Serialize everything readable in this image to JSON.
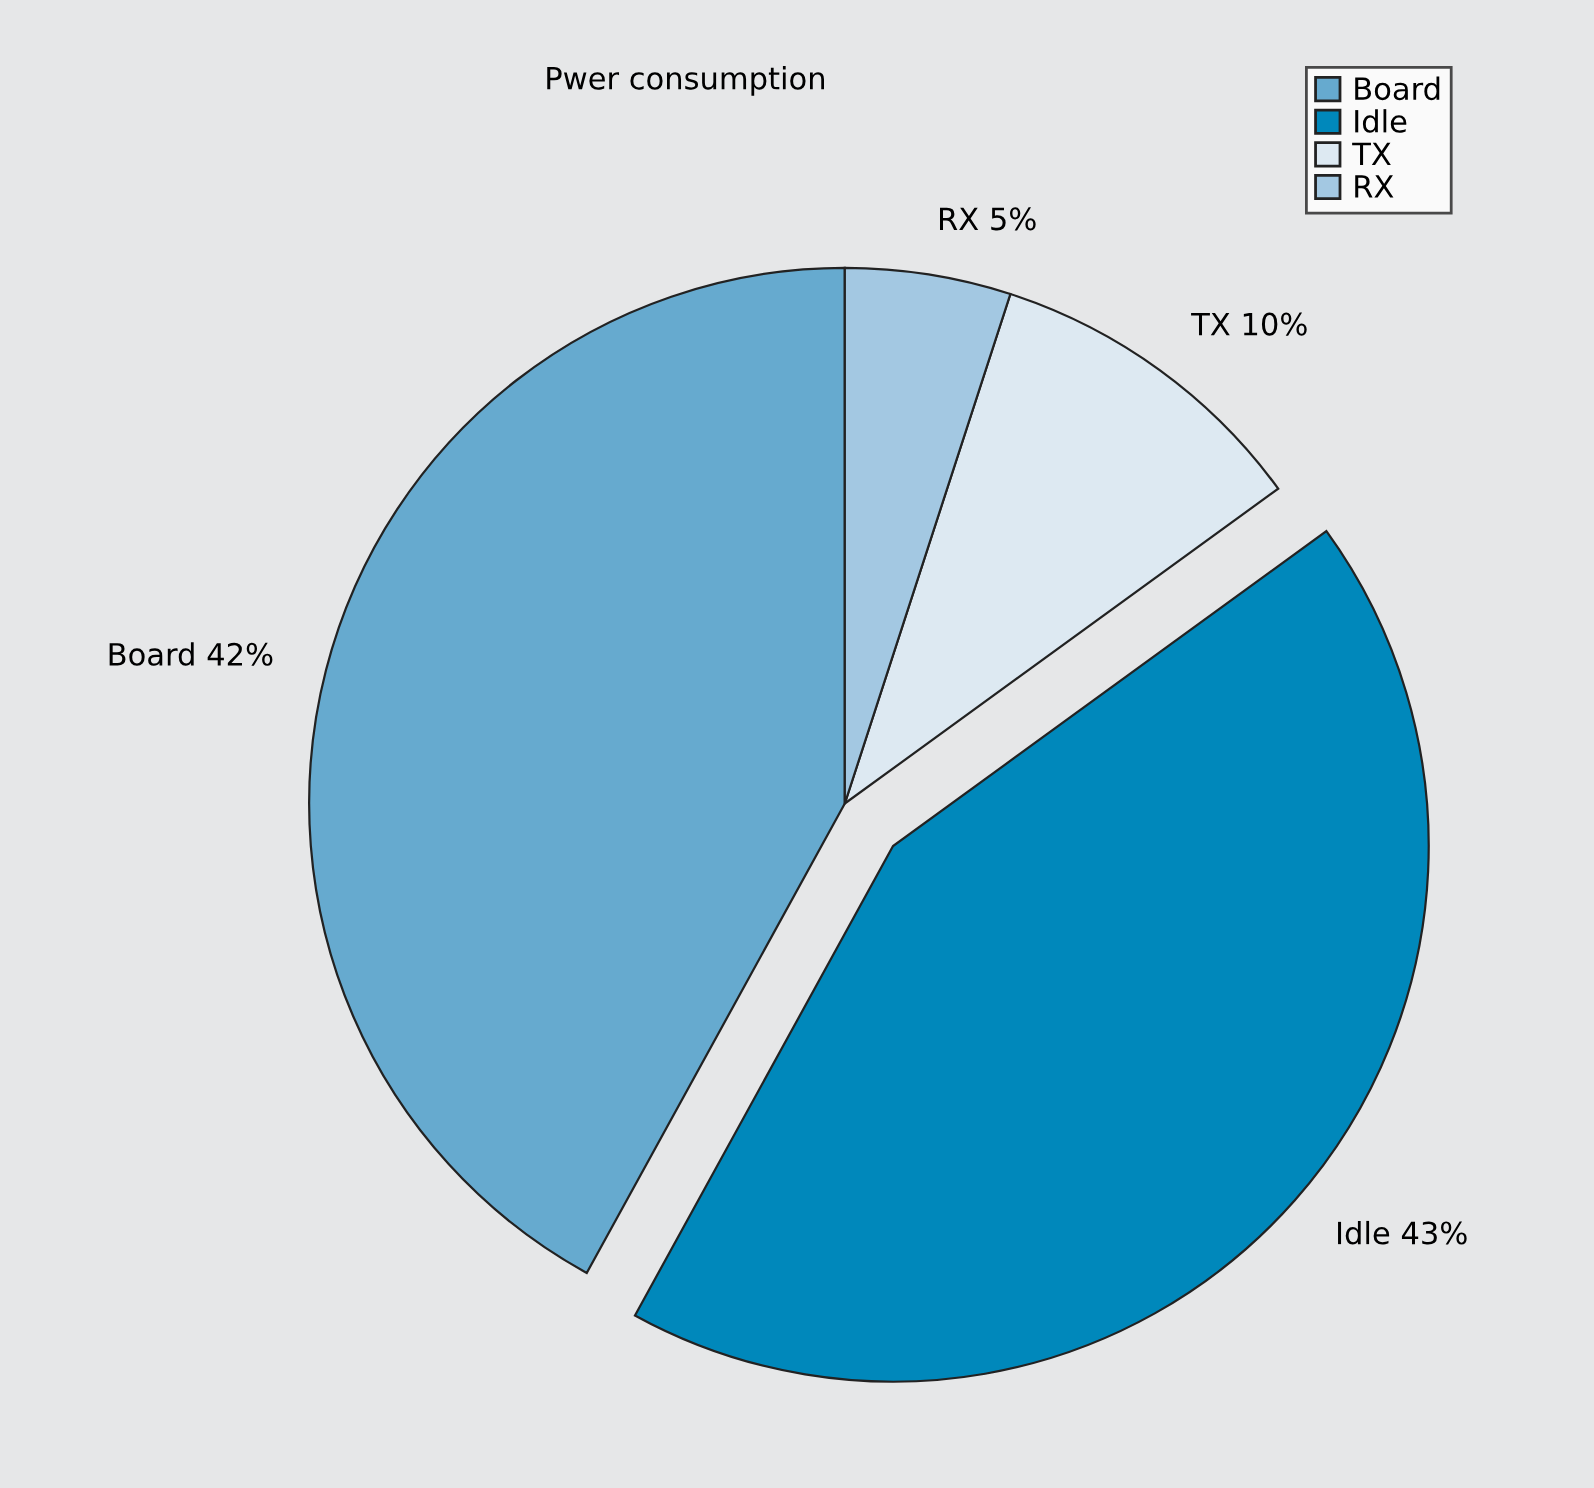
{
  "chart_data": {
    "type": "pie",
    "title": "Pwer consumption",
    "categories": [
      "Board",
      "Idle",
      "TX",
      "RX"
    ],
    "values": [
      42,
      43,
      10,
      5
    ],
    "value_labels": [
      "Board 42%",
      "Idle 43%",
      "TX 10%",
      "RX 5%"
    ],
    "colors": [
      "#66aacf",
      "#0088bb",
      "#dde9f2",
      "#a3c8e2"
    ],
    "legend": "top right"
  }
}
